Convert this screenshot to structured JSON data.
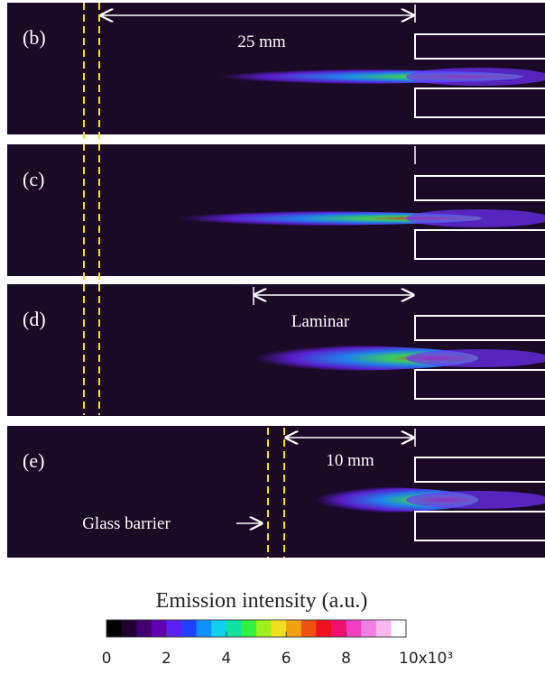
{
  "panels": [
    {
      "label": "(b)",
      "annotation": "25 mm"
    },
    {
      "label": "(c)"
    },
    {
      "label": "(d)",
      "annotation": "Laminar"
    },
    {
      "label": "(e)",
      "annotation": "10 mm",
      "note": "Glass barrier"
    }
  ],
  "colorbar": {
    "title": "Emission intensity (a.u.)",
    "lim": [
      0,
      10
    ],
    "ticks": [
      0,
      2,
      4,
      6,
      8,
      {
        "value": 10,
        "label": "10x10³"
      }
    ]
  }
}
